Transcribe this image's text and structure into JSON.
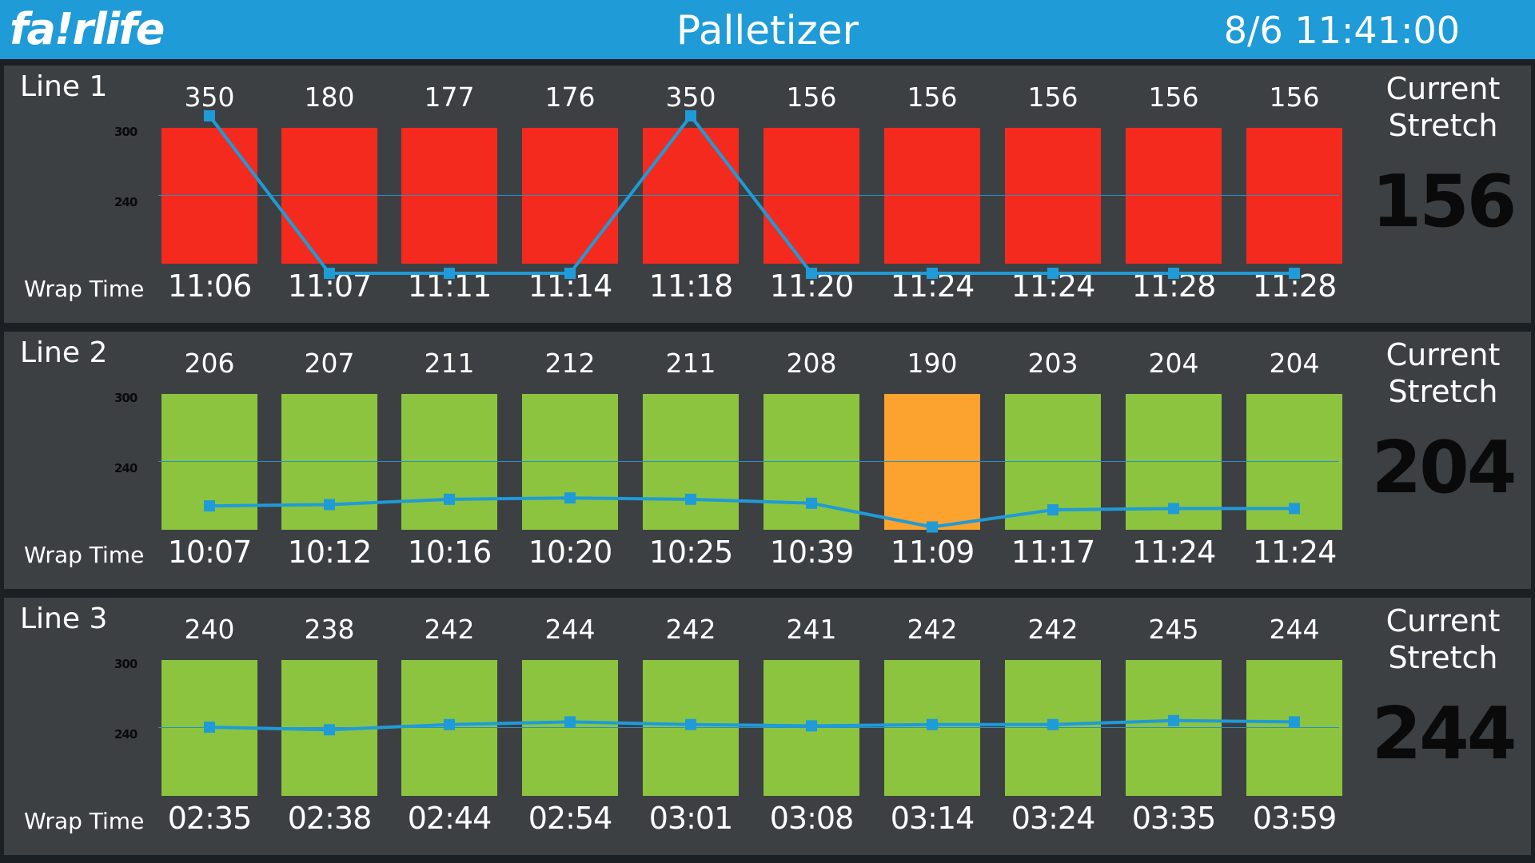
{
  "header": {
    "logo_text": "fa!rlife",
    "title": "Palletizer",
    "datetime": "8/6 11:41:00"
  },
  "colors": {
    "header": "#1f9bd8",
    "panel": "#3d4043",
    "bad": "#f42a1f",
    "ok": "#8cc43f",
    "warn": "#fba22f",
    "trend_line": "#1f9bd8"
  },
  "labels": {
    "wrap_time": "Wrap Time",
    "current_stretch": "Current Stretch"
  },
  "axis": {
    "upper": "300",
    "lower": "240"
  },
  "lines": [
    {
      "name": "Line 1",
      "current_stretch": "156",
      "values": [
        "350",
        "180",
        "177",
        "176",
        "350",
        "156",
        "156",
        "156",
        "156",
        "156"
      ],
      "wrap_times": [
        "11:06",
        "11:07",
        "11:11",
        "11:14",
        "11:18",
        "11:20",
        "11:24",
        "11:24",
        "11:28",
        "11:28"
      ],
      "status": [
        "bad",
        "bad",
        "bad",
        "bad",
        "bad",
        "bad",
        "bad",
        "bad",
        "bad",
        "bad"
      ]
    },
    {
      "name": "Line 2",
      "current_stretch": "204",
      "values": [
        "206",
        "207",
        "211",
        "212",
        "211",
        "208",
        "190",
        "203",
        "204",
        "204"
      ],
      "wrap_times": [
        "10:07",
        "10:12",
        "10:16",
        "10:20",
        "10:25",
        "10:39",
        "11:09",
        "11:17",
        "11:24",
        "11:24"
      ],
      "status": [
        "ok",
        "ok",
        "ok",
        "ok",
        "ok",
        "ok",
        "warn",
        "ok",
        "ok",
        "ok"
      ]
    },
    {
      "name": "Line 3",
      "current_stretch": "244",
      "values": [
        "240",
        "238",
        "242",
        "244",
        "242",
        "241",
        "242",
        "242",
        "245",
        "244"
      ],
      "wrap_times": [
        "02:35",
        "02:38",
        "02:44",
        "02:54",
        "03:01",
        "03:08",
        "03:14",
        "03:24",
        "03:35",
        "03:59"
      ],
      "status": [
        "ok",
        "ok",
        "ok",
        "ok",
        "ok",
        "ok",
        "ok",
        "ok",
        "ok",
        "ok"
      ]
    }
  ]
}
